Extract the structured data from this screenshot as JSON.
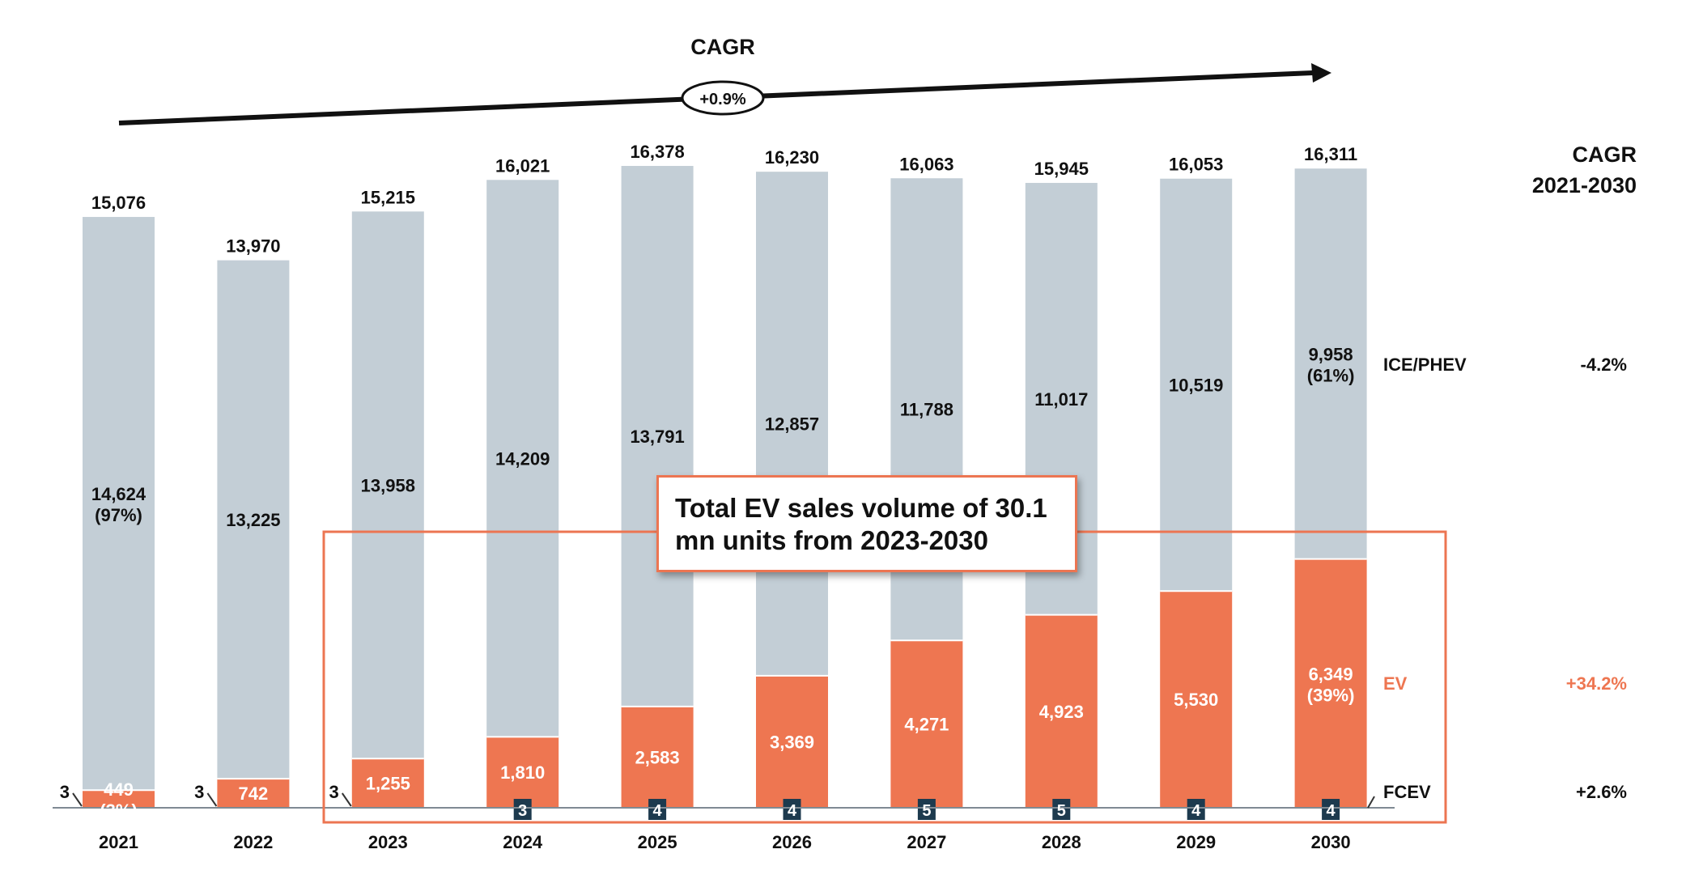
{
  "chart_data": {
    "type": "bar",
    "stacked": true,
    "categories": [
      "2021",
      "2022",
      "2023",
      "2024",
      "2025",
      "2026",
      "2027",
      "2028",
      "2029",
      "2030"
    ],
    "totals": [
      15076,
      13970,
      15215,
      16021,
      16378,
      16230,
      16063,
      15945,
      16053,
      16311
    ],
    "total_labels": [
      "15,076",
      "13,970",
      "15,215",
      "16,021",
      "16,378",
      "16,230",
      "16,063",
      "15,945",
      "16,053",
      "16,311"
    ],
    "series": [
      {
        "name": "FCEV",
        "values": [
          3,
          3,
          3,
          3,
          4,
          4,
          5,
          5,
          4,
          4
        ],
        "labels": [
          "3",
          "3",
          "3",
          "3",
          "4",
          "4",
          "5",
          "5",
          "4",
          "4"
        ],
        "color": "#1d3a4e",
        "cagr": "+2.6%"
      },
      {
        "name": "EV",
        "values": [
          449,
          742,
          1255,
          1810,
          2583,
          3369,
          4271,
          4923,
          5530,
          6349
        ],
        "labels": [
          "449",
          "742",
          "1,255",
          "1,810",
          "2,583",
          "3,369",
          "4,271",
          "4,923",
          "5,530",
          "6,349"
        ],
        "shares": {
          "0": "(3%)",
          "9": "(39%)"
        },
        "color": "#ee7651",
        "cagr": "+34.2%"
      },
      {
        "name": "ICE/PHEV",
        "values": [
          14624,
          13225,
          13958,
          14209,
          13791,
          12857,
          11788,
          11017,
          10519,
          9958
        ],
        "labels": [
          "14,624",
          "13,225",
          "13,958",
          "14,209",
          "13,791",
          "12,857",
          "11,788",
          "11,017",
          "10,519",
          "9,958"
        ],
        "shares": {
          "0": "(97%)",
          "9": "(61%)"
        },
        "color": "#c3ced6",
        "cagr": "-4.2%"
      }
    ],
    "overall_cagr_title": "CAGR",
    "overall_cagr": "+0.9%",
    "cagr_column_title": [
      "CAGR",
      "2021-2030"
    ],
    "callout": "Total EV sales volume of 30.1 mn units from 2023-2030",
    "ylim": [
      0,
      16500
    ]
  }
}
